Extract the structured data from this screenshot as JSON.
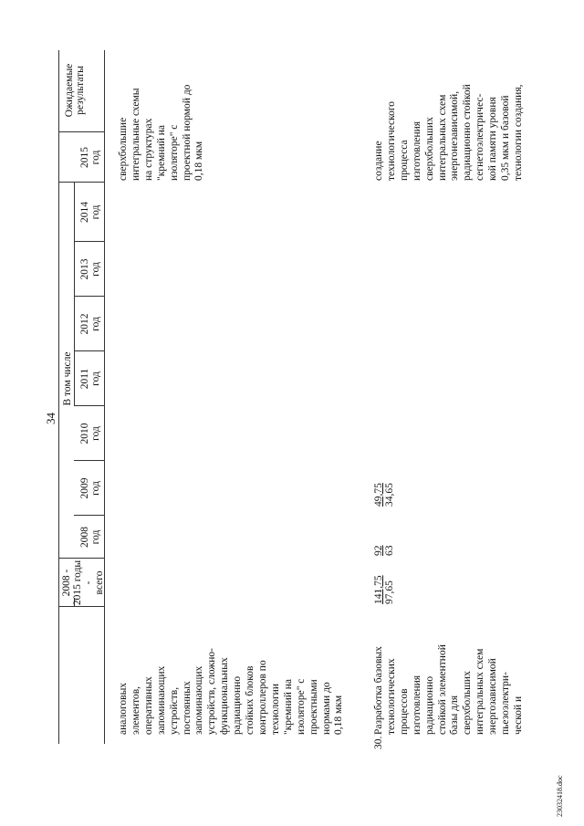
{
  "page_number": "34",
  "header": {
    "total_col": "2008 -\n2015 годы -\nвсего",
    "in_that_number": "В том числе",
    "years": [
      "2008\nгод",
      "2009\nгод",
      "2010\nгод",
      "2011\nгод",
      "2012\nгод",
      "2013\nгод",
      "2014\nгод",
      "2015\nгод"
    ],
    "results_col": "Ожидаемые\nрезультаты"
  },
  "rows": [
    {
      "num": "",
      "name": "аналоговых\nэлементов,\nоперативных\nзапоминающих\nустройств,\nпостоянных\nзапоминающих\nустройств, сложно-\nфункциональных\nрадиационно\nстойких блоков\nконтроллеров по\nтехнологии\n\"кремний на\nизоляторе\" с\nпроектными\nнормами до\n0,18 мкм",
      "total": [
        "",
        ""
      ],
      "y2008": [
        "",
        ""
      ],
      "y2009": [
        "",
        ""
      ],
      "result": "сверхбольшие\nинтегральные схемы\nна структурах\n\"кремний на\nизоляторе\" с\nпроектной нормой до\n0,18 мкм"
    },
    {
      "num": "30.",
      "name": "Разработка базовых\nтехнологических\nпроцессов\nизготовления\nрадиационно\nстойкой элементной\nбазы для\nсверхбольших\nинтегральных схем\nэнергозависимой\nпьезоэлектри-\nческой и",
      "total": [
        "141,75",
        "97,65"
      ],
      "y2008": [
        "92",
        "63"
      ],
      "y2009": [
        "49,75",
        "34,65"
      ],
      "result": "создание\nтехнологического\nпроцесса\nизготовления\nсверхбольших\nинтегральных схем\nэнергонезависимой,\nрадиационно стойкой\nсегнетоэлектричес-\nкой памяти уровня\n0,35 мкм и базовой\nтехнологии создания,"
    }
  ],
  "footer_code": "23032418.doc"
}
